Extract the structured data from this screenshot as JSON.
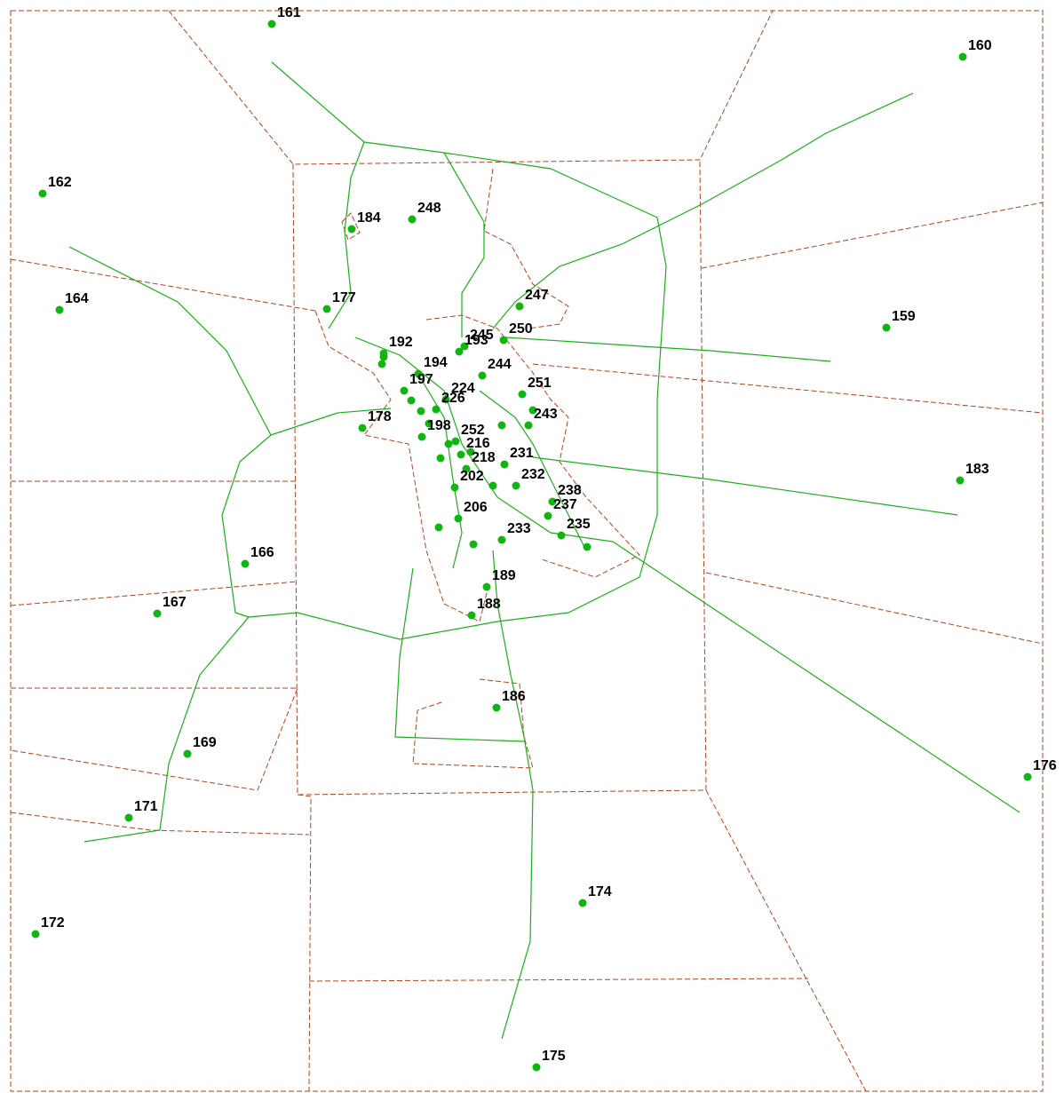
{
  "map": {
    "zones": [
      "161",
      "160",
      "162",
      "184",
      "248",
      "164",
      "177",
      "247",
      "159",
      "250",
      "193",
      "245",
      "192",
      "194",
      "244",
      "197",
      "224",
      "251",
      "226",
      "243",
      "178",
      "198",
      "252",
      "216",
      "218",
      "231",
      "202",
      "232",
      "238",
      "237",
      "206",
      "235",
      "233",
      "189",
      "166",
      "167",
      "188",
      "186",
      "169",
      "176",
      "171",
      "174",
      "172",
      "175",
      "183"
    ]
  }
}
